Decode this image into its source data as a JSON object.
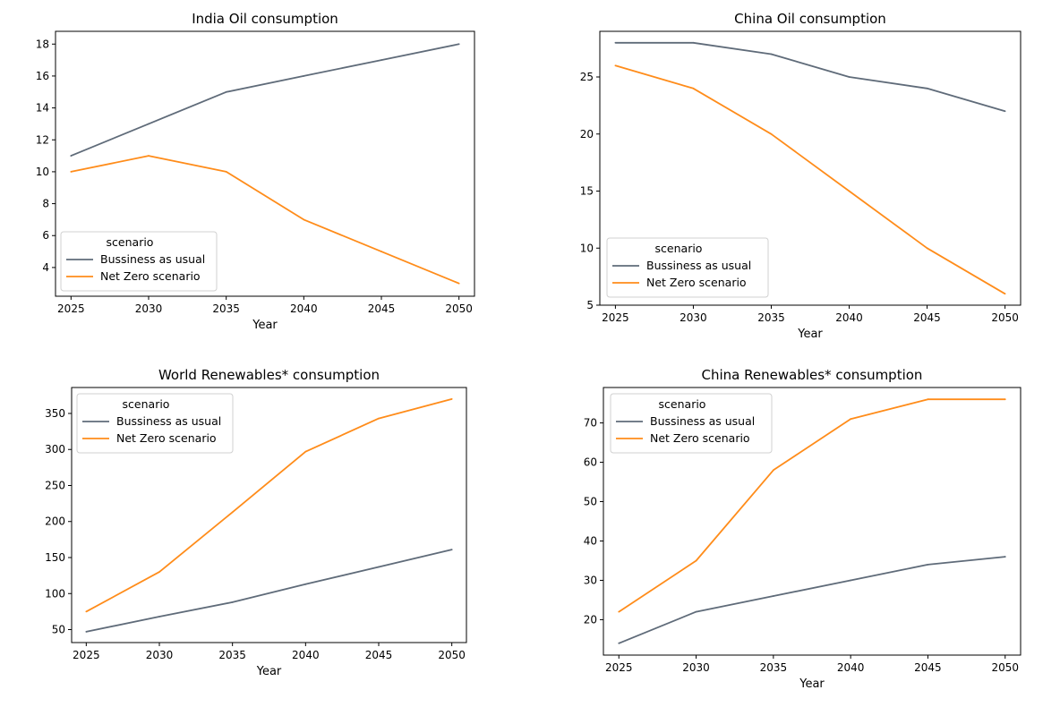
{
  "chart_data": [
    {
      "type": "line",
      "title": "India Oil consumption",
      "xlabel": "Year",
      "ylabel": "",
      "x": [
        2025,
        2030,
        2035,
        2040,
        2045,
        2050
      ],
      "xlim": [
        2024,
        2051
      ],
      "ylim": [
        2.2,
        18.8
      ],
      "yticks": [
        4,
        6,
        8,
        10,
        12,
        14,
        16,
        18
      ],
      "xticks": [
        2025,
        2030,
        2035,
        2040,
        2045,
        2050
      ],
      "grid": false,
      "legend": {
        "title": "scenario",
        "placement": "lower-left"
      },
      "series": [
        {
          "name": "Bussiness as usual",
          "color": "#5f6b79",
          "values": [
            11,
            13,
            15,
            16,
            17,
            18
          ]
        },
        {
          "name": "Net Zero scenario",
          "color": "#ff8c1a",
          "values": [
            10,
            11,
            10,
            7,
            5,
            3
          ]
        }
      ]
    },
    {
      "type": "line",
      "title": "China Oil consumption",
      "xlabel": "Year",
      "ylabel": "",
      "x": [
        2025,
        2030,
        2035,
        2040,
        2045,
        2050
      ],
      "xlim": [
        2024,
        2051
      ],
      "ylim": [
        5,
        29
      ],
      "yticks": [
        5,
        10,
        15,
        20,
        25
      ],
      "xticks": [
        2025,
        2030,
        2035,
        2040,
        2045,
        2050
      ],
      "grid": false,
      "legend": {
        "title": "scenario",
        "placement": "lower-left"
      },
      "series": [
        {
          "name": "Bussiness as usual",
          "color": "#5f6b79",
          "values": [
            28,
            28,
            27,
            25,
            24,
            22
          ]
        },
        {
          "name": "Net Zero scenario",
          "color": "#ff8c1a",
          "values": [
            26,
            24,
            20,
            15,
            10,
            6
          ]
        }
      ]
    },
    {
      "type": "line",
      "title": "World Renewables* consumption",
      "xlabel": "Year",
      "ylabel": "",
      "x": [
        2025,
        2030,
        2035,
        2040,
        2045,
        2050
      ],
      "xlim": [
        2024,
        2051
      ],
      "ylim": [
        32,
        386
      ],
      "yticks": [
        50,
        100,
        150,
        200,
        250,
        300,
        350
      ],
      "xticks": [
        2025,
        2030,
        2035,
        2040,
        2045,
        2050
      ],
      "grid": false,
      "legend": {
        "title": "scenario",
        "placement": "upper-left"
      },
      "series": [
        {
          "name": "Bussiness as usual",
          "color": "#5f6b79",
          "values": [
            47,
            68,
            88,
            113,
            137,
            161
          ]
        },
        {
          "name": "Net Zero scenario",
          "color": "#ff8c1a",
          "values": [
            75,
            130,
            213,
            297,
            343,
            370
          ]
        }
      ]
    },
    {
      "type": "line",
      "title": "China Renewables* consumption",
      "xlabel": "Year",
      "ylabel": "",
      "x": [
        2025,
        2030,
        2035,
        2040,
        2045,
        2050
      ],
      "xlim": [
        2024,
        2051
      ],
      "ylim": [
        11,
        79
      ],
      "yticks": [
        20,
        30,
        40,
        50,
        60,
        70
      ],
      "xticks": [
        2025,
        2030,
        2035,
        2040,
        2045,
        2050
      ],
      "grid": false,
      "legend": {
        "title": "scenario",
        "placement": "upper-left"
      },
      "series": [
        {
          "name": "Bussiness as usual",
          "color": "#5f6b79",
          "values": [
            14,
            22,
            26,
            30,
            34,
            36
          ]
        },
        {
          "name": "Net Zero scenario",
          "color": "#ff8c1a",
          "values": [
            22,
            35,
            58,
            71,
            76,
            76
          ]
        }
      ]
    }
  ]
}
